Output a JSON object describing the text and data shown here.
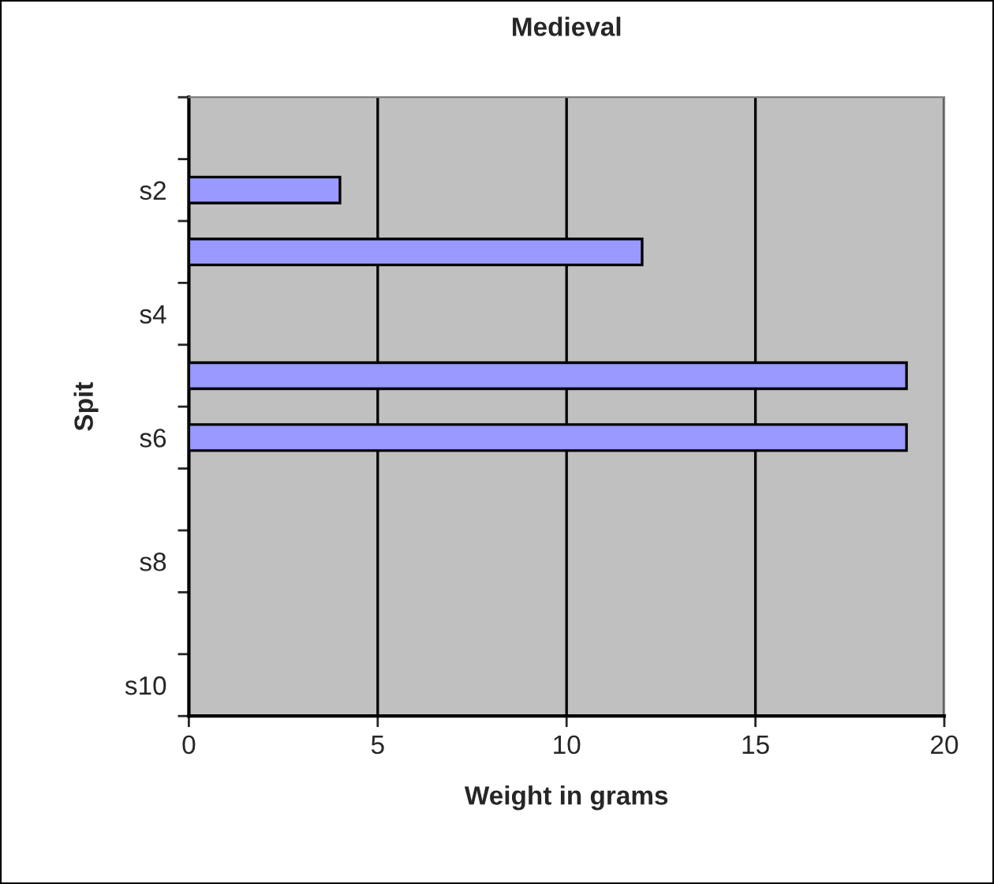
{
  "chart_data": {
    "type": "bar",
    "orientation": "horizontal",
    "title": "Medieval",
    "xlabel": "Weight in grams",
    "ylabel": "Spit",
    "categories": [
      null,
      "s2",
      null,
      "s4",
      null,
      "s6",
      null,
      "s8",
      null,
      "s10"
    ],
    "values": [
      null,
      4,
      12,
      null,
      19,
      19,
      null,
      null,
      null,
      null
    ],
    "color": "#9999ff",
    "xlim": [
      0,
      20
    ],
    "xticks": [
      0,
      5,
      10,
      15,
      20
    ],
    "grid": "x"
  }
}
